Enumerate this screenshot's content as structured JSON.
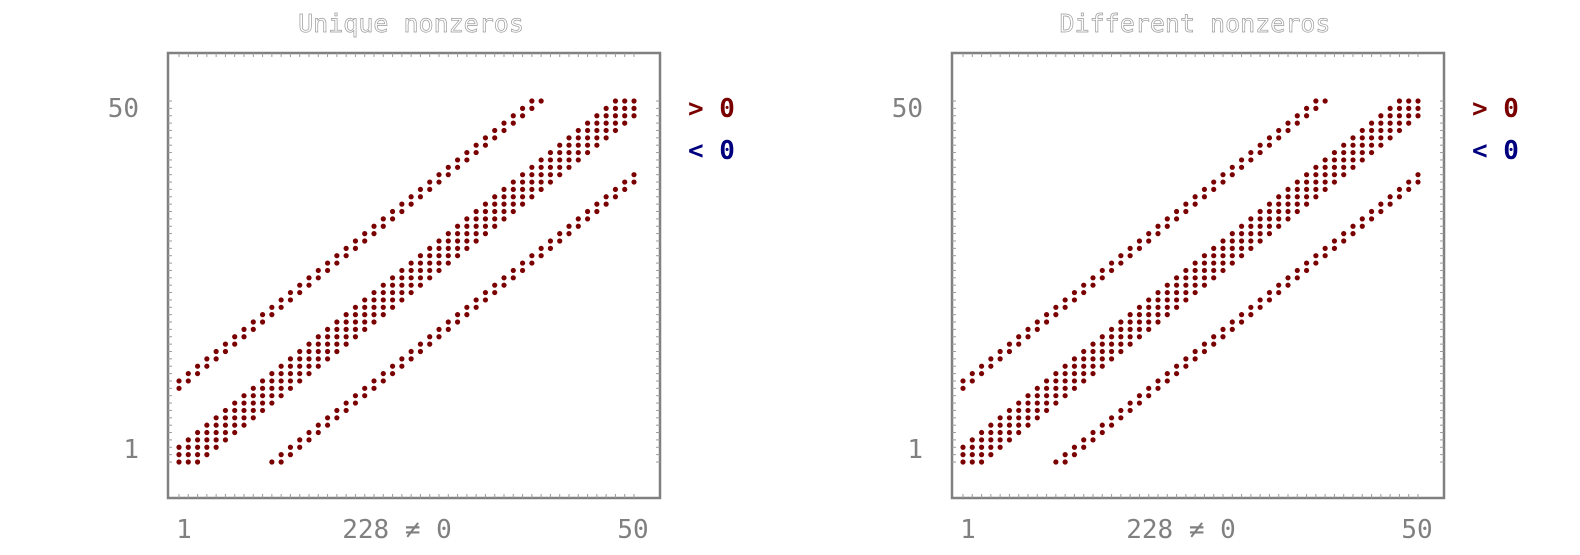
{
  "colors": {
    "positive": "#7a0000",
    "negative": "#00007f",
    "axis": "#808080"
  },
  "chart_data": [
    {
      "type": "scatter",
      "title": "Unique nonzeros",
      "xlim": [
        1,
        50
      ],
      "ylim": [
        1,
        50
      ],
      "xticks": [
        "1",
        "228 ≠ 0",
        "50"
      ],
      "yticks": [
        "1",
        "50"
      ],
      "legend": {
        "position": "right",
        "entries": [
          {
            "label": "> 0",
            "color": "#7a0000"
          },
          {
            "label": "< 0",
            "color": "#00007f"
          }
        ]
      },
      "nnz": 228,
      "pattern": "sparse matrix with nonzero bands: main band |i−j|≤2, upper band j−i∈{10,11} (positive values), lower band i−j∈{10,11} (positive values)",
      "bands": [
        {
          "name": "main",
          "offsets": [
            -2,
            -1,
            0,
            1,
            2
          ],
          "sign": "positive"
        },
        {
          "name": "upper",
          "offsets": [
            10,
            11
          ],
          "sign": "positive"
        },
        {
          "name": "lower",
          "offsets": [
            -10,
            -11
          ],
          "sign": "positive"
        }
      ]
    },
    {
      "type": "scatter",
      "title": "Different nonzeros",
      "xlim": [
        1,
        50
      ],
      "ylim": [
        1,
        50
      ],
      "xticks": [
        "1",
        "228 ≠ 0",
        "50"
      ],
      "yticks": [
        "1",
        "50"
      ],
      "legend": {
        "position": "right",
        "entries": [
          {
            "label": "> 0",
            "color": "#7a0000"
          },
          {
            "label": "< 0",
            "color": "#00007f"
          }
        ]
      },
      "nnz": 228,
      "pattern": "sparse matrix with nonzero bands: main band |i−j|≤2, upper band j−i∈{10,11} (positive values), lower band i−j∈{10,11} (positive values)",
      "bands": [
        {
          "name": "main",
          "offsets": [
            -2,
            -1,
            0,
            1,
            2
          ],
          "sign": "positive"
        },
        {
          "name": "upper",
          "offsets": [
            10,
            11
          ],
          "sign": "positive"
        },
        {
          "name": "lower",
          "offsets": [
            -10,
            -11
          ],
          "sign": "positive"
        }
      ]
    }
  ]
}
